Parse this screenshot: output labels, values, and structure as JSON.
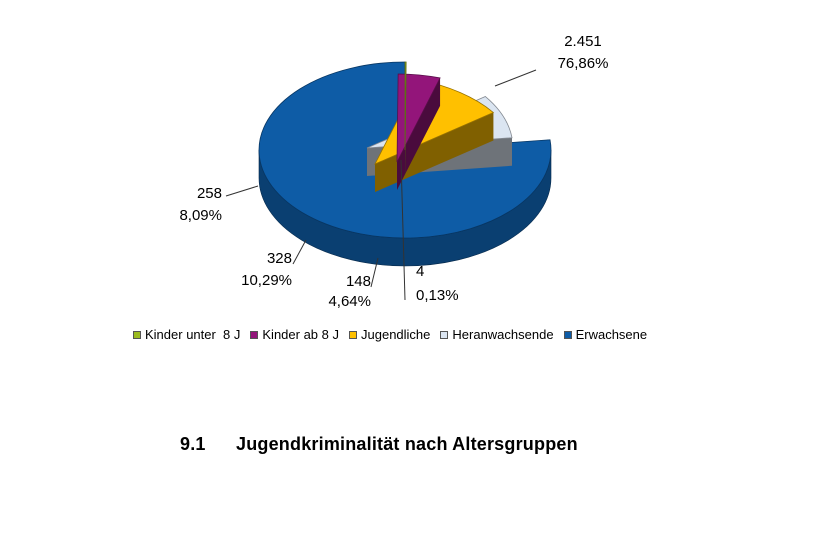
{
  "chart_data": {
    "type": "pie",
    "series": [
      {
        "name": "Kinder unter  8 J",
        "value": 4,
        "percent_label": "0,13%",
        "value_label": "4",
        "color": "#9bbb1f"
      },
      {
        "name": "Kinder ab 8 J",
        "value": 148,
        "percent_label": "4,64%",
        "value_label": "148",
        "color": "#93157a"
      },
      {
        "name": "Jugendliche",
        "value": 328,
        "percent_label": "10,29%",
        "value_label": "328",
        "color": "#ffc000"
      },
      {
        "name": "Heranwachsende",
        "value": 258,
        "percent_label": "8,09%",
        "value_label": "258",
        "color": "#dbe5f1"
      },
      {
        "name": "Erwachsene",
        "value": 2451,
        "percent_label": "76,86%",
        "value_label": "2.451",
        "color": "#0e5ca6"
      }
    ],
    "style": "3d-exploded",
    "legend_position": "bottom"
  },
  "caption": {
    "number": "9.1",
    "text": "Jugendkriminalität nach Altersgruppen"
  }
}
